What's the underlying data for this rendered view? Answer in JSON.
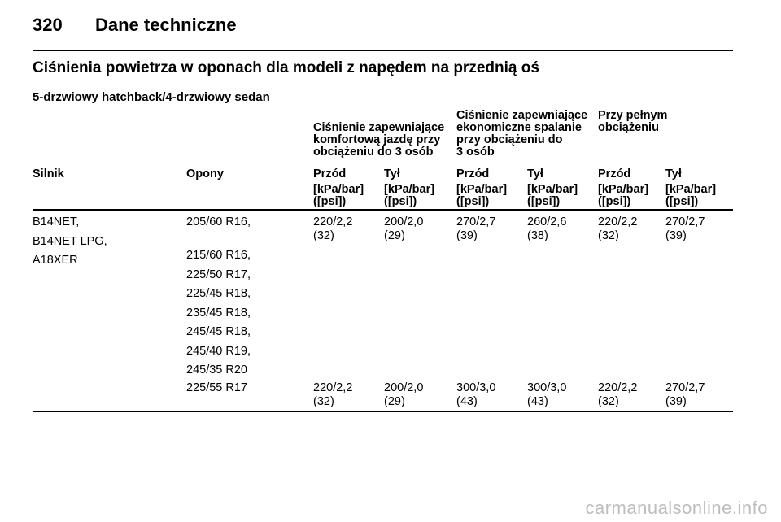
{
  "header": {
    "page_number": "320",
    "page_title": "Dane techniczne"
  },
  "section_heading": "Ciśnienia powietrza w oponach dla modeli z napędem na przednią oś",
  "sub_heading": "5-drzwiowy hatchback/4-drzwiowy sedan",
  "table": {
    "group_headers": [
      [
        "Ciśnienie zapewniające",
        "komfortową jazdę przy",
        "obciążeniu do 3 osób"
      ],
      [
        "Ciśnienie zapewniające",
        "ekonomiczne spalanie",
        "przy obciążeniu do",
        "3 osób"
      ],
      [
        "Przy pełnym",
        "obciążeniu"
      ]
    ],
    "column_headers": [
      "Silnik",
      "Opony",
      "Przód",
      "Tył",
      "Przód",
      "Tył",
      "Przód",
      "Tył"
    ],
    "unit_top": "[kPa/bar]",
    "unit_bottom": "([psi])",
    "rows": [
      {
        "engines": [
          "B14NET,",
          "B14NET LPG,",
          "A18XER"
        ],
        "tyres": [
          "205/60 R16,",
          "215/60 R16,",
          "225/50 R17,",
          "225/45 R18,",
          "235/45 R18,",
          "245/45 R18,",
          "245/40 R19,",
          "245/35 R20"
        ],
        "values": [
          [
            "220/2,2",
            "(32)"
          ],
          [
            "200/2,0",
            "(29)"
          ],
          [
            "270/2,7",
            "(39)"
          ],
          [
            "260/2,6",
            "(38)"
          ],
          [
            "220/2,2",
            "(32)"
          ],
          [
            "270/2,7",
            "(39)"
          ]
        ]
      },
      {
        "engines": [],
        "tyres": [
          "225/55 R17"
        ],
        "values": [
          [
            "220/2,2",
            "(32)"
          ],
          [
            "200/2,0",
            "(29)"
          ],
          [
            "300/3,0",
            "(43)"
          ],
          [
            "300/3,0",
            "(43)"
          ],
          [
            "220/2,2",
            "(32)"
          ],
          [
            "270/2,7",
            "(39)"
          ]
        ]
      }
    ]
  },
  "watermark": "carmanualsonline.info"
}
